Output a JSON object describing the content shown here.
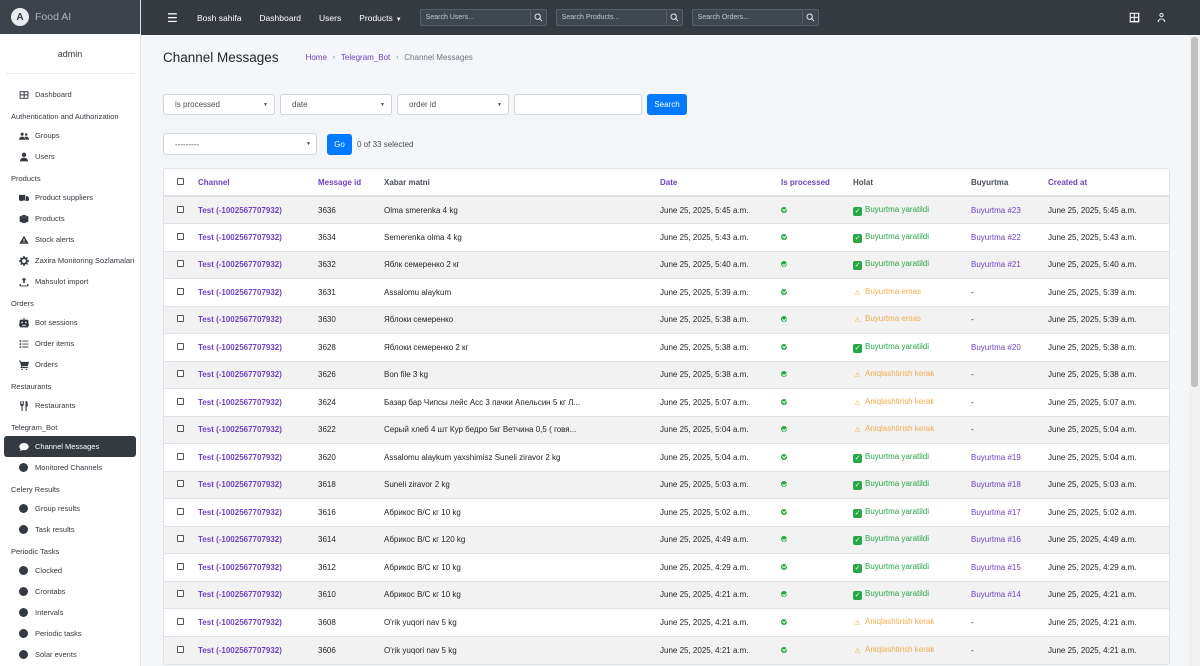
{
  "brand": {
    "name": "Food AI",
    "logo_letter": "A"
  },
  "user": {
    "name": "admin"
  },
  "sidebar": {
    "items": [
      {
        "type": "item",
        "label": "Dashboard",
        "icon": "dashboard-icon"
      },
      {
        "type": "header",
        "label": "Authentication and Authorization"
      },
      {
        "type": "item",
        "label": "Groups",
        "icon": "users-group-icon"
      },
      {
        "type": "item",
        "label": "Users",
        "icon": "user-icon"
      },
      {
        "type": "header",
        "label": "Products"
      },
      {
        "type": "item",
        "label": "Product suppliers",
        "icon": "truck-icon"
      },
      {
        "type": "item",
        "label": "Products",
        "icon": "box-icon"
      },
      {
        "type": "item",
        "label": "Stock alerts",
        "icon": "warning-icon"
      },
      {
        "type": "item",
        "label": "Zaxira Monitoring Sozlamalari",
        "icon": "gear-icon"
      },
      {
        "type": "item",
        "label": "Mahsulot import",
        "icon": "upload-icon"
      },
      {
        "type": "header",
        "label": "Orders"
      },
      {
        "type": "item",
        "label": "Bot sessions",
        "icon": "robot-icon"
      },
      {
        "type": "item",
        "label": "Order items",
        "icon": "list-icon"
      },
      {
        "type": "item",
        "label": "Orders",
        "icon": "cart-icon"
      },
      {
        "type": "header",
        "label": "Restaurants"
      },
      {
        "type": "item",
        "label": "Restaurants",
        "icon": "utensils-icon"
      },
      {
        "type": "header",
        "label": "Telegram_Bot"
      },
      {
        "type": "item",
        "label": "Channel Messages",
        "icon": "comment-icon",
        "active": true
      },
      {
        "type": "item",
        "label": "Monitored Channels",
        "icon": "circle-icon"
      },
      {
        "type": "header",
        "label": "Celery Results"
      },
      {
        "type": "item",
        "label": "Group results",
        "icon": "circle-icon"
      },
      {
        "type": "item",
        "label": "Task results",
        "icon": "circle-icon"
      },
      {
        "type": "header",
        "label": "Periodic Tasks"
      },
      {
        "type": "item",
        "label": "Clocked",
        "icon": "circle-icon"
      },
      {
        "type": "item",
        "label": "Crontabs",
        "icon": "circle-icon"
      },
      {
        "type": "item",
        "label": "Intervals",
        "icon": "circle-icon"
      },
      {
        "type": "item",
        "label": "Periodic tasks",
        "icon": "circle-icon"
      },
      {
        "type": "item",
        "label": "Solar events",
        "icon": "circle-icon"
      }
    ]
  },
  "topbar": {
    "home": "Bosh sahifa",
    "dashboard": "Dashboard",
    "users": "Users",
    "products": "Products",
    "search_users": "Search Users...",
    "search_products": "Search Products...",
    "search_orders": "Search Orders..."
  },
  "page": {
    "title": "Channel Messages",
    "breadcrumb": [
      "Home",
      "Telegram_Bot",
      "Channel Messages"
    ]
  },
  "filters": {
    "f1": "is processed",
    "f2": "date",
    "f3": "order id",
    "search_value": "",
    "search_button": "Search"
  },
  "actions": {
    "select": "---------",
    "go": "Go",
    "selected": "0 of 33 selected"
  },
  "table": {
    "headers": [
      "Channel",
      "Message id",
      "Xabar matni",
      "Date",
      "Is processed",
      "Holat",
      "Buyurtma",
      "Created at"
    ],
    "rows": [
      {
        "channel": "Test (-1002567707932)",
        "id": "3636",
        "msg": "Olma smerenka 4 kg",
        "date": "June 25, 2025, 5:45 a.m.",
        "status": "Buyurtma yaratildi",
        "ok": true,
        "order": "Buyurtma #23",
        "created": "June 25, 2025, 5:45 a.m."
      },
      {
        "channel": "Test (-1002567707932)",
        "id": "3634",
        "msg": "Semerenka olma 4 kg",
        "date": "June 25, 2025, 5:43 a.m.",
        "status": "Buyurtma yaratildi",
        "ok": true,
        "order": "Buyurtma #22",
        "created": "June 25, 2025, 5:43 a.m."
      },
      {
        "channel": "Test (-1002567707932)",
        "id": "3632",
        "msg": "Яблк семеренко 2 кг",
        "date": "June 25, 2025, 5:40 a.m.",
        "status": "Buyurtma yaratildi",
        "ok": true,
        "order": "Buyurtma #21",
        "created": "June 25, 2025, 5:40 a.m."
      },
      {
        "channel": "Test (-1002567707932)",
        "id": "3631",
        "msg": "Assalomu alaykum",
        "date": "June 25, 2025, 5:39 a.m.",
        "status": "Buyurtma emas",
        "ok": false,
        "order": "-",
        "created": "June 25, 2025, 5:39 a.m."
      },
      {
        "channel": "Test (-1002567707932)",
        "id": "3630",
        "msg": "Яблоки семеренко",
        "date": "June 25, 2025, 5:38 a.m.",
        "status": "Buyurtma emas",
        "ok": false,
        "order": "-",
        "created": "June 25, 2025, 5:39 a.m."
      },
      {
        "channel": "Test (-1002567707932)",
        "id": "3628",
        "msg": "Яблоки семеренко 2 кг",
        "date": "June 25, 2025, 5:38 a.m.",
        "status": "Buyurtma yaratildi",
        "ok": true,
        "order": "Buyurtma #20",
        "created": "June 25, 2025, 5:38 a.m."
      },
      {
        "channel": "Test (-1002567707932)",
        "id": "3626",
        "msg": "Bon file 3 kg",
        "date": "June 25, 2025, 5:38 a.m.",
        "status": "Aniqlashtirish kerak",
        "ok": false,
        "order": "-",
        "created": "June 25, 2025, 5:38 a.m."
      },
      {
        "channel": "Test (-1002567707932)",
        "id": "3624",
        "msg": "Базар бар Чипсы лейс Асс 3 пачки Апельсин 5 кг Л...",
        "date": "June 25, 2025, 5:07 a.m.",
        "status": "Aniqlashtirish kerak",
        "ok": false,
        "order": "-",
        "created": "June 25, 2025, 5:07 a.m."
      },
      {
        "channel": "Test (-1002567707932)",
        "id": "3622",
        "msg": "Серый хлеб 4 шт Кур бедро 5кг Ветчина 0,5 ( говя...",
        "date": "June 25, 2025, 5:04 a.m.",
        "status": "Aniqlashtirish kerak",
        "ok": false,
        "order": "-",
        "created": "June 25, 2025, 5:04 a.m."
      },
      {
        "channel": "Test (-1002567707932)",
        "id": "3620",
        "msg": "Assalomu alaykum yaxshimisz Suneli ziravor 2 kg",
        "date": "June 25, 2025, 5:04 a.m.",
        "status": "Buyurtma yaratildi",
        "ok": true,
        "order": "Buyurtma #19",
        "created": "June 25, 2025, 5:04 a.m."
      },
      {
        "channel": "Test (-1002567707932)",
        "id": "3618",
        "msg": "Suneli ziravor 2 kg",
        "date": "June 25, 2025, 5:03 a.m.",
        "status": "Buyurtma yaratildi",
        "ok": true,
        "order": "Buyurtma #18",
        "created": "June 25, 2025, 5:03 a.m."
      },
      {
        "channel": "Test (-1002567707932)",
        "id": "3616",
        "msg": "Абрикос В/С кг 10 kg",
        "date": "June 25, 2025, 5:02 a.m.",
        "status": "Buyurtma yaratildi",
        "ok": true,
        "order": "Buyurtma #17",
        "created": "June 25, 2025, 5:02 a.m."
      },
      {
        "channel": "Test (-1002567707932)",
        "id": "3614",
        "msg": "Абрикос В/С кг 120 kg",
        "date": "June 25, 2025, 4:49 a.m.",
        "status": "Buyurtma yaratildi",
        "ok": true,
        "order": "Buyurtma #16",
        "created": "June 25, 2025, 4:49 a.m."
      },
      {
        "channel": "Test (-1002567707932)",
        "id": "3612",
        "msg": "Абрикос В/С кг 10 kg",
        "date": "June 25, 2025, 4:29 a.m.",
        "status": "Buyurtma yaratildi",
        "ok": true,
        "order": "Buyurtma #15",
        "created": "June 25, 2025, 4:29 a.m."
      },
      {
        "channel": "Test (-1002567707932)",
        "id": "3610",
        "msg": "Абрикос В/С кг 10 kg",
        "date": "June 25, 2025, 4:21 a.m.",
        "status": "Buyurtma yaratildi",
        "ok": true,
        "order": "Buyurtma #14",
        "created": "June 25, 2025, 4:21 a.m."
      },
      {
        "channel": "Test (-1002567707932)",
        "id": "3608",
        "msg": "O'rik yuqori nav 5 kg",
        "date": "June 25, 2025, 4:21 a.m.",
        "status": "Aniqlashtirish kerak",
        "ok": false,
        "order": "-",
        "created": "June 25, 2025, 4:21 a.m."
      },
      {
        "channel": "Test (-1002567707932)",
        "id": "3606",
        "msg": "O'rik yuqori nav 5 kg",
        "date": "June 25, 2025, 4:21 a.m.",
        "status": "Aniqlashtirish kerak",
        "ok": false,
        "order": "-",
        "created": "June 25, 2025, 4:21 a.m."
      }
    ]
  },
  "colors": {
    "accent": "#6f42c1",
    "primary": "#007bff",
    "success": "#28a745",
    "warning": "#f0ad4e",
    "topbar": "#343a40"
  }
}
